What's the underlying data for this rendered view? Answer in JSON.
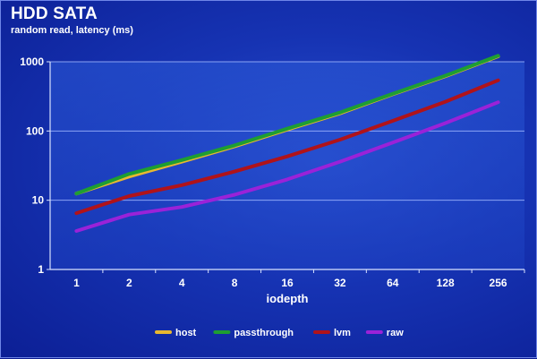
{
  "chart_data": {
    "type": "line",
    "title": "HDD SATA",
    "subtitle": "random read, latency (ms)",
    "xlabel": "iodepth",
    "ylabel": "",
    "x": [
      "1",
      "2",
      "4",
      "8",
      "16",
      "32",
      "64",
      "128",
      "256"
    ],
    "y_scale": "log",
    "ylim": [
      1,
      1000
    ],
    "y_ticks": [
      "1",
      "10",
      "100",
      "1000"
    ],
    "grid": "horizontal",
    "legend_position": "bottom",
    "series": [
      {
        "name": "host",
        "color": "#e8b830",
        "values": [
          12.5,
          22,
          36,
          60,
          105,
          180,
          340,
          620,
          1200
        ]
      },
      {
        "name": "passthrough",
        "color": "#1e9e32",
        "values": [
          12.5,
          24,
          38,
          62,
          108,
          185,
          345,
          630,
          1220
        ]
      },
      {
        "name": "lvm",
        "color": "#b0131a",
        "values": [
          6.5,
          11.5,
          16.5,
          26,
          43,
          75,
          140,
          265,
          540
        ]
      },
      {
        "name": "raw",
        "color": "#9a22d8",
        "values": [
          3.6,
          6.2,
          8,
          12,
          20,
          36,
          68,
          130,
          260
        ]
      }
    ]
  }
}
